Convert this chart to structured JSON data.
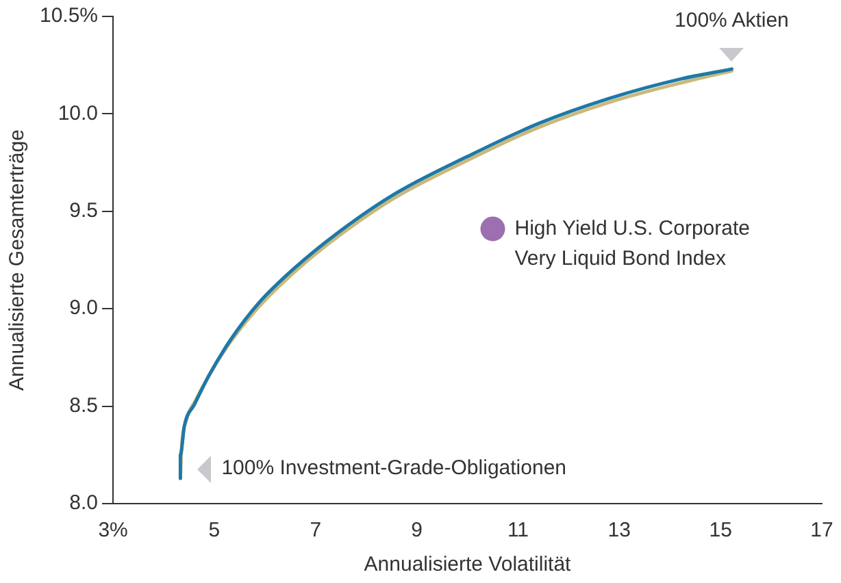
{
  "chart_data": {
    "type": "line",
    "xlabel": "Annualisierte Volatilität",
    "ylabel": "Annualisierte Gesamterträge",
    "xlim": [
      3,
      17
    ],
    "xticks": [
      {
        "value": 3,
        "label": "3%"
      },
      5,
      7,
      9,
      11,
      13,
      15,
      17
    ],
    "ylim": [
      8,
      10.5
    ],
    "yticks": [
      {
        "value": 8,
        "label": "8.0"
      },
      {
        "value": 8.5,
        "label": "8.5"
      },
      {
        "value": 9,
        "label": "9.0"
      },
      {
        "value": 9.5,
        "label": "9.5"
      },
      {
        "value": 10,
        "label": "10.0"
      },
      {
        "value": 10.5,
        "label": "10.5%"
      }
    ],
    "grid": false,
    "legend": false,
    "marker": "none",
    "line_style": "solid",
    "series": [
      {
        "color": "#1f78a8",
        "x": [
          4.33,
          4.33,
          4.41,
          4.61,
          4.9,
          5.32,
          5.88,
          6.59,
          7.44,
          8.57,
          9.99,
          11.4,
          12.81,
          14.23,
          15.22
        ],
        "values": [
          8.13,
          8.25,
          8.4,
          8.51,
          8.66,
          8.84,
          9.03,
          9.21,
          9.39,
          9.59,
          9.78,
          9.95,
          10.08,
          10.18,
          10.23
        ]
      },
      {
        "color": "#c9b97c",
        "x": [
          4.33,
          4.35,
          4.45,
          4.63,
          4.9,
          5.32,
          5.88,
          6.59,
          7.44,
          8.57,
          9.99,
          11.4,
          12.81,
          14.23,
          15.22
        ],
        "values": [
          8.13,
          8.27,
          8.43,
          8.53,
          8.66,
          8.83,
          9.01,
          9.19,
          9.37,
          9.57,
          9.76,
          9.93,
          10.06,
          10.16,
          10.22
        ]
      },
      {
        "type": "scatter",
        "marker": "circle",
        "name": "High Yield U.S. Corporate Very Liquid Bond Index",
        "color": "#9b6fb0",
        "x": [
          10.5
        ],
        "values": [
          9.41
        ]
      }
    ],
    "annotations": [
      {
        "text": "100% Aktien",
        "x": 15.22,
        "y": 10.23
      },
      {
        "text": "100% Investment-Grade-Obligationen",
        "x": 4.33,
        "y": 8.13
      }
    ]
  }
}
